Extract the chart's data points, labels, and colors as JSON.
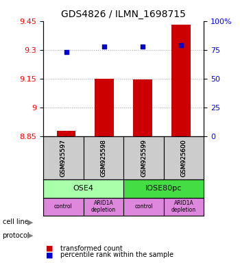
{
  "title": "GDS4826 / ILMN_1698715",
  "samples": [
    "GSM925597",
    "GSM925598",
    "GSM925599",
    "GSM925600"
  ],
  "bar_values": [
    8.88,
    9.15,
    9.145,
    9.43
  ],
  "dot_values": [
    73,
    78,
    78,
    79
  ],
  "ylim_left": [
    8.85,
    9.45
  ],
  "ylim_right": [
    0,
    100
  ],
  "yticks_left": [
    8.85,
    9.0,
    9.15,
    9.3,
    9.45
  ],
  "ytick_labels_left": [
    "8.85",
    "9",
    "9.15",
    "9.3",
    "9.45"
  ],
  "yticks_right": [
    0,
    25,
    50,
    75,
    100
  ],
  "ytick_labels_right": [
    "0",
    "25",
    "50",
    "75",
    "100%"
  ],
  "bar_color": "#cc0000",
  "dot_color": "#0000cc",
  "bar_bottom": 8.85,
  "cell_line_labels": [
    "OSE4",
    "IOSE80pc"
  ],
  "cell_line_spans": [
    [
      0,
      1
    ],
    [
      2,
      3
    ]
  ],
  "cell_line_color_ose4": "#aaffaa",
  "cell_line_color_iose80pc": "#44dd44",
  "protocol_labels": [
    "control",
    "ARID1A\ndepletion",
    "control",
    "ARID1A\ndepletion"
  ],
  "protocol_color": "#dd88dd",
  "sample_box_color": "#cccccc",
  "grid_color": "#aaaaaa",
  "legend_red_label": "transformed count",
  "legend_blue_label": "percentile rank within the sample"
}
